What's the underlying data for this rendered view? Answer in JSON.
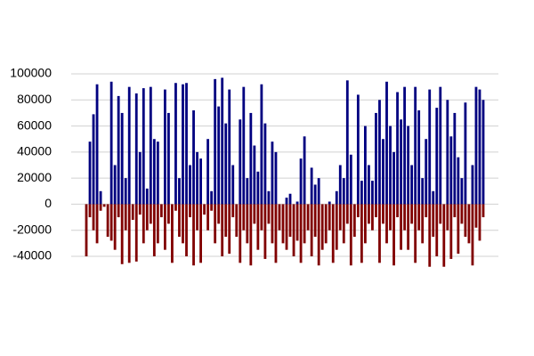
{
  "chart_data": {
    "type": "bar",
    "categories": [
      null,
      null,
      null,
      null,
      null,
      null,
      null,
      null,
      null,
      null,
      null,
      null,
      null,
      null,
      null,
      null,
      null,
      null,
      null,
      null,
      null,
      null,
      null,
      null,
      null,
      null,
      null,
      null,
      null,
      null,
      null,
      null,
      null,
      null,
      null,
      null,
      null,
      null,
      null,
      null,
      null,
      null,
      null,
      null,
      null,
      null,
      null,
      null,
      null,
      null,
      null,
      null,
      null,
      null,
      null,
      null,
      null,
      null,
      null,
      null,
      null,
      null,
      null,
      null,
      null,
      null,
      null,
      null,
      null,
      null,
      null,
      null,
      null,
      null,
      null,
      null,
      null,
      null,
      null,
      null,
      null,
      null,
      null,
      null,
      null,
      null,
      null,
      null,
      null,
      null,
      null,
      null,
      null,
      null,
      null,
      null,
      null,
      null,
      null,
      null,
      null,
      null,
      null,
      null,
      null,
      null,
      null,
      null,
      null,
      null,
      null,
      null
    ],
    "series": [
      {
        "color": "#000080",
        "values": [
          0,
          48000,
          69000,
          92000,
          10000,
          0,
          0,
          94000,
          30000,
          83000,
          70000,
          20000,
          90000,
          0,
          85000,
          40000,
          89000,
          12000,
          90000,
          50000,
          48000,
          0,
          88000,
          70000,
          0,
          93000,
          20000,
          92000,
          93000,
          30000,
          72000,
          40000,
          35000,
          0,
          50000,
          10000,
          96000,
          75000,
          97000,
          62000,
          88000,
          30000,
          0,
          65000,
          90000,
          20000,
          70000,
          45000,
          25000,
          92000,
          62000,
          10000,
          48000,
          40000,
          0,
          0,
          5000,
          8000,
          0,
          2000,
          35000,
          52000,
          0,
          28000,
          15000,
          20000,
          0,
          0,
          2000,
          0,
          10000,
          30000,
          20000,
          95000,
          38000,
          0,
          84000,
          18000,
          60000,
          30000,
          18000,
          70000,
          80000,
          50000,
          94000,
          60000,
          40000,
          86000,
          65000,
          90000,
          60000,
          30000,
          90000,
          72000,
          20000,
          50000,
          88000,
          10000,
          74000,
          90000,
          0,
          80000,
          52000,
          70000,
          36000,
          20000,
          78000,
          0,
          30000,
          90000,
          88000,
          80000
        ]
      },
      {
        "color": "#800000",
        "values": [
          -40000,
          -10000,
          -20000,
          -30000,
          -5000,
          -2000,
          -25000,
          -28000,
          -35000,
          -10000,
          -46000,
          -20000,
          -45000,
          -12000,
          -44000,
          -8000,
          -30000,
          -20000,
          -15000,
          -40000,
          -30000,
          -10000,
          -35000,
          -15000,
          -45000,
          -5000,
          -25000,
          -30000,
          -40000,
          -10000,
          -47000,
          -20000,
          -45000,
          -8000,
          -20000,
          -5000,
          -30000,
          -15000,
          -40000,
          -25000,
          -38000,
          -10000,
          -25000,
          -45000,
          -20000,
          -30000,
          -47000,
          -15000,
          -35000,
          -20000,
          -42000,
          -15000,
          -30000,
          -45000,
          -20000,
          -30000,
          -35000,
          -25000,
          -40000,
          -28000,
          -45000,
          -30000,
          -20000,
          -40000,
          -25000,
          -47000,
          -35000,
          -30000,
          -20000,
          -45000,
          -35000,
          -20000,
          -30000,
          -15000,
          -47000,
          -25000,
          -10000,
          -45000,
          -30000,
          -15000,
          -20000,
          -10000,
          -45000,
          -15000,
          -30000,
          -20000,
          -47000,
          -10000,
          -35000,
          -20000,
          -35000,
          -15000,
          -45000,
          -20000,
          -30000,
          -10000,
          -48000,
          -25000,
          -40000,
          -15000,
          -48000,
          -20000,
          -42000,
          -10000,
          -38000,
          -15000,
          -25000,
          -30000,
          -47000,
          -18000,
          -28000,
          -10000
        ]
      }
    ],
    "ylim": [
      -40000,
      100000
    ],
    "yticks": [
      -40000,
      -20000,
      0,
      20000,
      40000,
      60000,
      80000,
      100000
    ],
    "grid": true
  }
}
